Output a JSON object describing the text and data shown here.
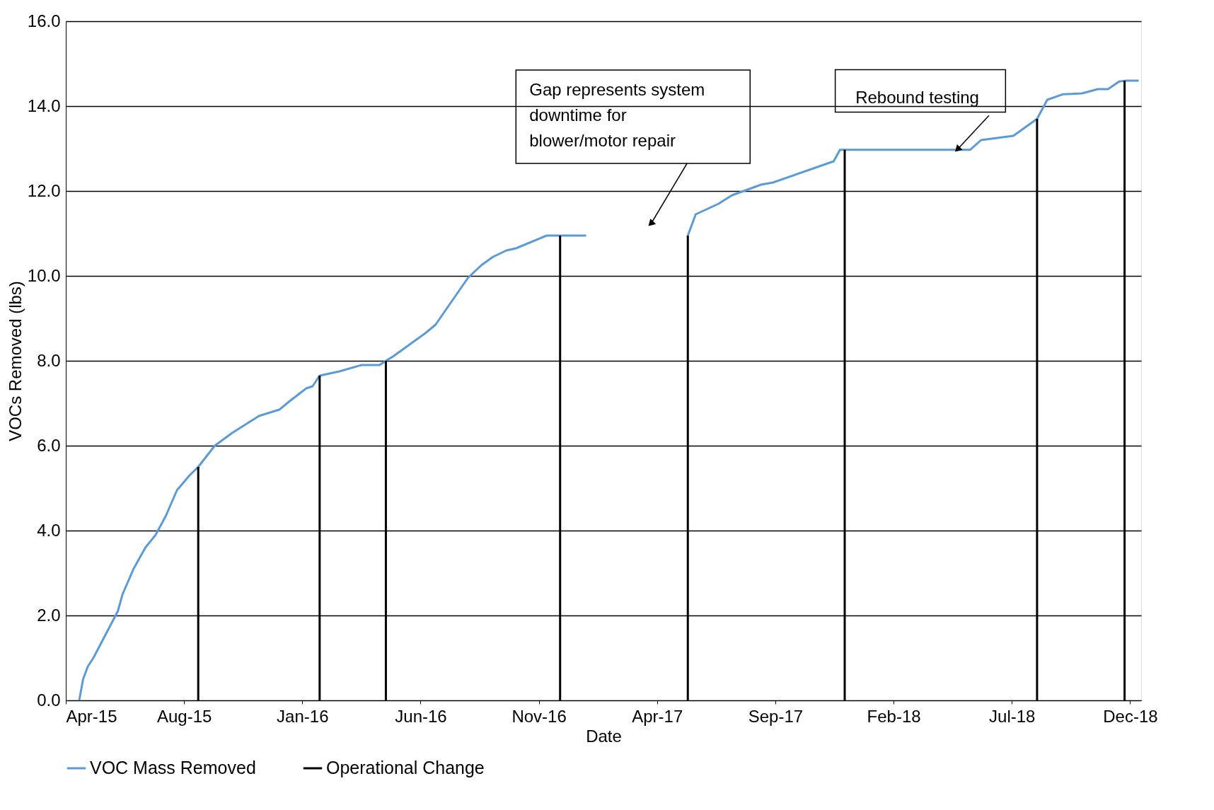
{
  "chart_data": {
    "type": "line",
    "xlabel": "Date",
    "ylabel": "VOCs Removed (lbs)",
    "xlim": [
      "2015-04-01",
      "2018-12-25"
    ],
    "xticks": [
      {
        "value": "2015-04-01",
        "label": "Apr-15"
      },
      {
        "value": "2015-08-29",
        "label": "Aug-15"
      },
      {
        "value": "2016-01-26",
        "label": "Jan-16"
      },
      {
        "value": "2016-06-24",
        "label": "Jun-16"
      },
      {
        "value": "2016-11-21",
        "label": "Nov-16"
      },
      {
        "value": "2017-04-20",
        "label": "Apr-17"
      },
      {
        "value": "2017-09-17",
        "label": "Sep-17"
      },
      {
        "value": "2018-02-14",
        "label": "Feb-18"
      },
      {
        "value": "2018-07-14",
        "label": "Jul-18"
      },
      {
        "value": "2018-12-11",
        "label": "Dec-18"
      }
    ],
    "ylim": [
      0,
      16
    ],
    "yticks": [
      {
        "value": 0,
        "label": "0.0"
      },
      {
        "value": 2,
        "label": "2.0"
      },
      {
        "value": 4,
        "label": "4.0"
      },
      {
        "value": 6,
        "label": "6.0"
      },
      {
        "value": 8,
        "label": "8.0"
      },
      {
        "value": 10,
        "label": "10.0"
      },
      {
        "value": 12,
        "label": "12.0"
      },
      {
        "value": 14,
        "label": "14.0"
      },
      {
        "value": 16,
        "label": "16.0"
      }
    ],
    "grid": "y",
    "legend": "bottom",
    "marker": "none",
    "line_style": "solid",
    "series": [
      {
        "name": "VOC Mass Removed",
        "color": "#5b9bd5",
        "x": [
          "2015-04-18",
          "2015-04-23",
          "2015-04-29",
          "2015-05-06",
          "2015-06-06",
          "2015-06-12",
          "2015-06-26",
          "2015-07-11",
          "2015-07-24",
          "2015-08-06",
          "2015-08-20",
          "2015-09-05",
          "2015-09-16",
          "2015-10-07",
          "2015-10-29",
          "2015-12-02",
          "2015-12-28",
          "2016-01-10",
          "2016-01-31",
          "2016-02-08",
          "2016-02-17",
          "2016-03-13",
          "2016-04-10",
          "2016-05-03",
          "2016-05-11",
          "2016-05-20",
          "2016-06-30",
          "2016-07-13",
          "2016-08-23",
          "2016-09-09",
          "2016-09-24",
          "2016-10-11",
          "2016-10-23",
          "2016-12-01",
          "2016-12-18",
          "2017-01-20",
          "2017-03-21",
          "2017-05-29",
          "2017-06-08",
          "2017-07-07",
          "2017-07-24",
          "2017-08-30",
          "2017-09-14",
          "2017-11-30",
          "2017-12-08",
          "2017-12-14",
          "2018-05-22",
          "2018-06-05",
          "2018-07-16",
          "2018-08-15",
          "2018-08-28",
          "2018-09-17",
          "2018-10-11",
          "2018-10-31",
          "2018-11-13",
          "2018-11-27",
          "2018-12-06",
          "2018-12-22"
        ],
        "values": [
          0.0,
          0.5,
          0.8,
          1.0,
          2.1,
          2.5,
          3.1,
          3.6,
          3.9,
          4.35,
          4.95,
          5.3,
          5.5,
          6.0,
          6.3,
          6.7,
          6.85,
          7.05,
          7.35,
          7.4,
          7.65,
          7.75,
          7.9,
          7.9,
          8.0,
          8.1,
          8.65,
          8.85,
          9.95,
          10.25,
          10.45,
          10.6,
          10.65,
          10.95,
          10.95,
          10.95,
          null,
          10.95,
          11.45,
          11.7,
          11.9,
          12.15,
          12.2,
          12.7,
          12.97,
          12.97,
          12.97,
          13.2,
          13.3,
          13.7,
          14.15,
          14.28,
          14.3,
          14.4,
          14.4,
          14.58,
          14.6,
          14.6
        ]
      },
      {
        "name": "Operational Change",
        "color": "#000000",
        "type": "bar",
        "x": [
          "2015-09-16",
          "2016-02-17",
          "2016-05-11",
          "2016-12-18",
          "2017-05-29",
          "2017-12-14",
          "2018-08-15",
          "2018-12-04"
        ],
        "values": [
          5.5,
          7.65,
          8.0,
          10.95,
          10.95,
          12.97,
          13.7,
          14.6
        ]
      }
    ],
    "annotations": [
      {
        "text": "Gap represents system\ndowntime for\nblower/motor repair",
        "x": "2017-04-13",
        "y": 11.25
      },
      {
        "text": "Rebound testing",
        "x": "2018-05-07",
        "y": 13.0
      }
    ]
  }
}
